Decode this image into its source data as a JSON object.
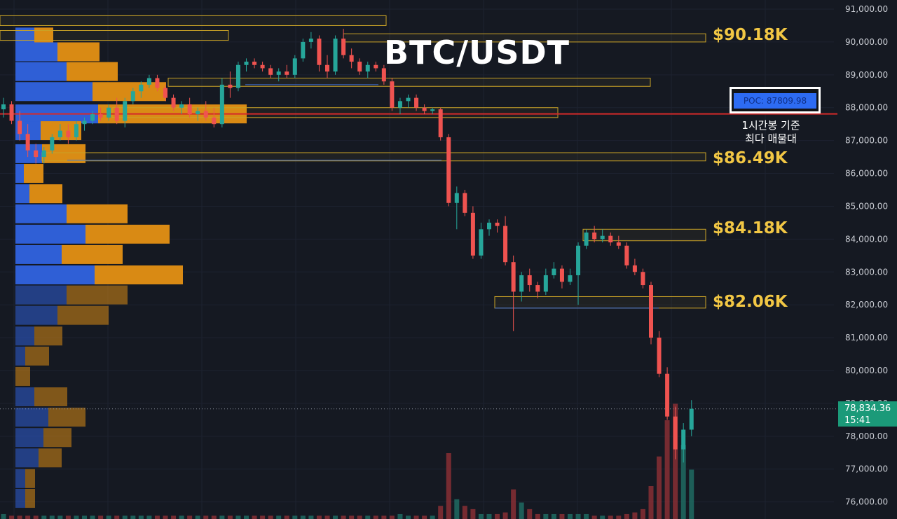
{
  "chart_data": {
    "type": "candlestick",
    "title": "BTC/USDT",
    "y_axis": {
      "ticks": [
        "91,000.00",
        "90,000.00",
        "89,000.00",
        "88,000.00",
        "87,000.00",
        "86,000.00",
        "85,000.00",
        "84,000.00",
        "83,000.00",
        "82,000.00",
        "81,000.00",
        "80,000.00",
        "79,000.00",
        "78,000.00",
        "77,000.00",
        "76,000.00"
      ],
      "tick_values": [
        91000,
        90000,
        89000,
        88000,
        87000,
        86000,
        85000,
        84000,
        83000,
        82000,
        81000,
        80000,
        79000,
        78000,
        77000,
        76000
      ],
      "range": [
        75500,
        91300
      ]
    },
    "levels": [
      {
        "label": "$90.18K",
        "value": 90180
      },
      {
        "label": "$86.49K",
        "value": 86490
      },
      {
        "label": "$84.18K",
        "value": 84180
      },
      {
        "label": "$82.06K",
        "value": 82060
      }
    ],
    "poc": {
      "label": "POC: 87809.98",
      "value": 87809.98,
      "note": [
        "1시간봉 기준",
        "최다 매물대"
      ]
    },
    "last_price": {
      "value": "78,834.36",
      "countdown": "15:41"
    },
    "colors": {
      "up": "#26a69a",
      "down": "#ef5350",
      "poc_line": "#d32a2a",
      "level": "#c9a227",
      "vp_buy": "#2f5fd6",
      "vp_sell": "#d98a14",
      "background": "#151922",
      "last_price": "#1b9a79"
    },
    "volume_profile": [
      {
        "price": 90900,
        "buy": 0,
        "sell": 0
      },
      {
        "price": 90150,
        "buy": 27,
        "sell": 27
      },
      {
        "price": 89700,
        "buy": 60,
        "sell": 60
      },
      {
        "price": 89100,
        "buy": 73,
        "sell": 73
      },
      {
        "price": 88490,
        "buy": 110,
        "sell": 105
      },
      {
        "price": 87810,
        "buy": 118,
        "sell": 212
      },
      {
        "price": 87300,
        "buy": 36,
        "sell": 58
      },
      {
        "price": 86600,
        "buy": 38,
        "sell": 62
      },
      {
        "price": 86000,
        "buy": 12,
        "sell": 28
      },
      {
        "price": 85380,
        "buy": 20,
        "sell": 47
      },
      {
        "price": 84770,
        "buy": 73,
        "sell": 87
      },
      {
        "price": 84150,
        "buy": 100,
        "sell": 120
      },
      {
        "price": 83530,
        "buy": 66,
        "sell": 87
      },
      {
        "price": 82910,
        "buy": 113,
        "sell": 126
      },
      {
        "price": 82300,
        "buy": 73,
        "sell": 87
      },
      {
        "price": 81680,
        "buy": 60,
        "sell": 73
      },
      {
        "price": 81050,
        "buy": 27,
        "sell": 40
      },
      {
        "price": 80440,
        "buy": 14,
        "sell": 34
      },
      {
        "price": 79820,
        "buy": 0,
        "sell": 21
      },
      {
        "price": 79200,
        "buy": 27,
        "sell": 47
      },
      {
        "price": 78580,
        "buy": 47,
        "sell": 53
      },
      {
        "price": 77960,
        "buy": 40,
        "sell": 40
      },
      {
        "price": 77340,
        "buy": 33,
        "sell": 33
      },
      {
        "price": 76710,
        "buy": 14,
        "sell": 14
      },
      {
        "price": 76110,
        "buy": 14,
        "sell": 14
      }
    ],
    "candles": [
      [
        87950,
        88300,
        87700,
        88100
      ],
      [
        88100,
        88200,
        87500,
        87600
      ],
      [
        87600,
        87900,
        87000,
        87200
      ],
      [
        87200,
        87500,
        86500,
        86700
      ],
      [
        86700,
        86900,
        86300,
        86500
      ],
      [
        86500,
        86800,
        86300,
        86700
      ],
      [
        86700,
        87200,
        86600,
        87100
      ],
      [
        87100,
        87500,
        87000,
        87300
      ],
      [
        87300,
        87500,
        86900,
        87100
      ],
      [
        87100,
        87600,
        87000,
        87500
      ],
      [
        87500,
        87700,
        87300,
        87600
      ],
      [
        87600,
        87900,
        87500,
        87800
      ],
      [
        87800,
        88000,
        87600,
        87700
      ],
      [
        87700,
        88100,
        87600,
        88000
      ],
      [
        88000,
        88300,
        87500,
        87600
      ],
      [
        87600,
        88300,
        87400,
        88200
      ],
      [
        88200,
        88600,
        88100,
        88500
      ],
      [
        88500,
        88800,
        88300,
        88700
      ],
      [
        88700,
        89000,
        88600,
        88900
      ],
      [
        88900,
        89000,
        88500,
        88600
      ],
      [
        88600,
        88700,
        88200,
        88300
      ],
      [
        88300,
        88400,
        87900,
        88000
      ],
      [
        88000,
        88200,
        87800,
        88100
      ],
      [
        88100,
        88300,
        87700,
        87800
      ],
      [
        87800,
        88000,
        87600,
        87900
      ],
      [
        87900,
        88200,
        87600,
        87700
      ],
      [
        87700,
        88000,
        87400,
        87500
      ],
      [
        87500,
        88900,
        87400,
        88700
      ],
      [
        88700,
        89100,
        88300,
        88600
      ],
      [
        88600,
        89400,
        88500,
        89300
      ],
      [
        89300,
        89500,
        89100,
        89400
      ],
      [
        89400,
        89500,
        89200,
        89300
      ],
      [
        89300,
        89400,
        89100,
        89200
      ],
      [
        89200,
        89300,
        88900,
        89000
      ],
      [
        89000,
        89200,
        88800,
        89100
      ],
      [
        89100,
        89300,
        88900,
        89000
      ],
      [
        89000,
        89600,
        88900,
        89500
      ],
      [
        89500,
        90100,
        89400,
        90000
      ],
      [
        90000,
        90300,
        89800,
        90100
      ],
      [
        90100,
        90200,
        89100,
        89300
      ],
      [
        89300,
        89600,
        88900,
        89100
      ],
      [
        89100,
        90200,
        89000,
        90100
      ],
      [
        90100,
        90400,
        89500,
        89600
      ],
      [
        89600,
        89800,
        89200,
        89400
      ],
      [
        89400,
        89500,
        89000,
        89100
      ],
      [
        89100,
        89400,
        88900,
        89300
      ],
      [
        89300,
        89400,
        89100,
        89200
      ],
      [
        89200,
        89300,
        88700,
        88800
      ],
      [
        88800,
        88900,
        87900,
        88000
      ],
      [
        88000,
        88300,
        87800,
        88200
      ],
      [
        88200,
        88400,
        88000,
        88300
      ],
      [
        88300,
        88400,
        87900,
        88000
      ],
      [
        88000,
        88100,
        87800,
        87900
      ],
      [
        87900,
        88000,
        87800,
        87950
      ],
      [
        87950,
        88000,
        87000,
        87100
      ],
      [
        87100,
        87200,
        85000,
        85100
      ],
      [
        85100,
        85600,
        84300,
        85400
      ],
      [
        85400,
        85500,
        84700,
        84800
      ],
      [
        84800,
        85000,
        83400,
        83500
      ],
      [
        83500,
        84500,
        83400,
        84300
      ],
      [
        84300,
        84600,
        84100,
        84500
      ],
      [
        84500,
        84600,
        84200,
        84400
      ],
      [
        84400,
        84700,
        83200,
        83300
      ],
      [
        83300,
        83500,
        81200,
        82400
      ],
      [
        82400,
        83000,
        82100,
        82900
      ],
      [
        82900,
        83100,
        82400,
        82600
      ],
      [
        82600,
        82700,
        82200,
        82400
      ],
      [
        82400,
        83100,
        82300,
        82900
      ],
      [
        82900,
        83300,
        82800,
        83100
      ],
      [
        83100,
        83200,
        82500,
        82700
      ],
      [
        82700,
        83100,
        82600,
        82900
      ],
      [
        82900,
        83900,
        82000,
        83800
      ],
      [
        83800,
        84300,
        83700,
        84200
      ],
      [
        84200,
        84400,
        83900,
        84000
      ],
      [
        84000,
        84300,
        83900,
        84100
      ],
      [
        84100,
        84200,
        83800,
        83900
      ],
      [
        83900,
        84100,
        83700,
        83800
      ],
      [
        83800,
        83900,
        83100,
        83200
      ],
      [
        83200,
        83400,
        82900,
        83000
      ],
      [
        83000,
        83100,
        82500,
        82600
      ],
      [
        82600,
        82700,
        80800,
        81000
      ],
      [
        81000,
        81200,
        79800,
        79900
      ],
      [
        79900,
        80100,
        78500,
        78600
      ],
      [
        78600,
        78900,
        77300,
        77600
      ],
      [
        77600,
        78400,
        77200,
        78200
      ],
      [
        78200,
        79100,
        78000,
        78834
      ]
    ],
    "volume": [
      3,
      2,
      2,
      2,
      2,
      2,
      2,
      2,
      2,
      2,
      2,
      2,
      2,
      2,
      2,
      2,
      2,
      2,
      2,
      2,
      2,
      2,
      2,
      2,
      2,
      2,
      2,
      2,
      2,
      2,
      2,
      2,
      2,
      2,
      2,
      2,
      2,
      2,
      2,
      2,
      2,
      2,
      2,
      2,
      2,
      2,
      2,
      2,
      2,
      3,
      2,
      2,
      2,
      2,
      8,
      40,
      12,
      8,
      6,
      3,
      3,
      3,
      4,
      18,
      10,
      6,
      3,
      3,
      3,
      3,
      3,
      3,
      3,
      2,
      2,
      2,
      2,
      3,
      4,
      6,
      20,
      38,
      60,
      70,
      45,
      30
    ]
  }
}
